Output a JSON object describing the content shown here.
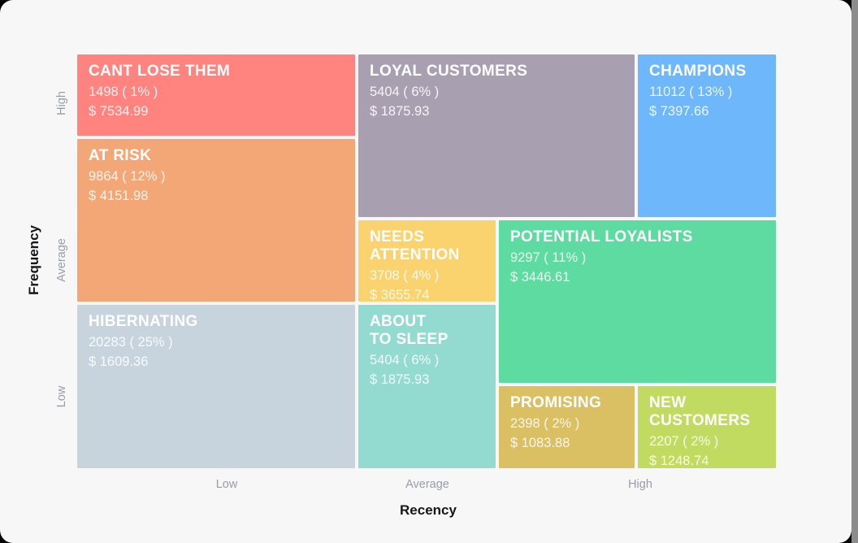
{
  "window": {
    "background_color": "#000000",
    "card_color": "#F7F7F8",
    "edge_strip_color": "#8c8c8c"
  },
  "chart_data": {
    "type": "treemap",
    "subtype": "rfm-segmentation-grid",
    "xlabel": "Recency",
    "ylabel": "Frequency",
    "x_ticks": [
      "Low",
      "Average",
      "High"
    ],
    "y_ticks": [
      "High",
      "Average",
      "Low"
    ],
    "legend": "none",
    "grid": false,
    "segments": [
      {
        "name": "CANT LOSE THEM",
        "display_name": "CANT LOSE THEM",
        "customers": 1498,
        "percent": 1,
        "monetary": 7534.99,
        "count_label": "1498 ( 1% )",
        "money_label": "$ 7534.99",
        "color": "#FF8480",
        "recency": "Low",
        "frequency": "High"
      },
      {
        "name": "AT RISK",
        "display_name": "AT RISK",
        "customers": 9864,
        "percent": 12,
        "monetary": 4151.98,
        "count_label": "9864 ( 12% )",
        "money_label": "$ 4151.98",
        "color": "#F3A777",
        "recency": "Low",
        "frequency": "Average"
      },
      {
        "name": "HIBERNATING",
        "display_name": "HIBERNATING",
        "customers": 20283,
        "percent": 25,
        "monetary": 1609.36,
        "count_label": "20283 ( 25% )",
        "money_label": "$ 1609.36",
        "color": "#C7D4DD",
        "recency": "Low",
        "frequency": "Low"
      },
      {
        "name": "LOYAL CUSTOMERS",
        "display_name": "LOYAL CUSTOMERS",
        "customers": 5404,
        "percent": 6,
        "monetary": 1875.93,
        "count_label": "5404 ( 6% )",
        "money_label": "$ 1875.93",
        "color": "#A8A0B1",
        "recency": "Average",
        "frequency": "High"
      },
      {
        "name": "CHAMPIONS",
        "display_name": "CHAMPIONS",
        "customers": 11012,
        "percent": 13,
        "monetary": 7397.66,
        "count_label": "11012 ( 13% )",
        "money_label": "$ 7397.66",
        "color": "#6FB7FB",
        "recency": "High",
        "frequency": "High"
      },
      {
        "name": "NEEDS ATTENTION",
        "display_name": "NEEDS\nATTENTION",
        "customers": 3708,
        "percent": 4,
        "monetary": 3655.74,
        "count_label": "3708 ( 4% )",
        "money_label": "$ 3655.74",
        "color": "#FAD36E",
        "recency": "Average",
        "frequency": "Average"
      },
      {
        "name": "POTENTIAL LOYALISTS",
        "display_name": "POTENTIAL LOYALISTS",
        "customers": 9297,
        "percent": 11,
        "monetary": 3446.61,
        "count_label": "9297 ( 11% )",
        "money_label": "$ 3446.61",
        "color": "#5EDBA0",
        "recency": "High",
        "frequency": "Average"
      },
      {
        "name": "ABOUT TO SLEEP",
        "display_name": "ABOUT\nTO SLEEP",
        "customers": 5404,
        "percent": 6,
        "monetary": 1875.93,
        "count_label": "5404 ( 6% )",
        "money_label": "$ 1875.93",
        "color": "#93DAD1",
        "recency": "Average",
        "frequency": "Low"
      },
      {
        "name": "PROMISING",
        "display_name": "PROMISING",
        "customers": 2398,
        "percent": 2,
        "monetary": 1083.88,
        "count_label": "2398 ( 2% )",
        "money_label": "$ 1083.88",
        "color": "#DBBF63",
        "recency": "High",
        "frequency": "Low"
      },
      {
        "name": "NEW CUSTOMERS",
        "display_name": "NEW\nCUSTOMERS",
        "customers": 2207,
        "percent": 2,
        "monetary": 1248.74,
        "count_label": "2207 ( 2% )",
        "money_label": "$ 1248.74",
        "color": "#C0DB5F",
        "recency": "High",
        "frequency": "Low"
      }
    ]
  }
}
